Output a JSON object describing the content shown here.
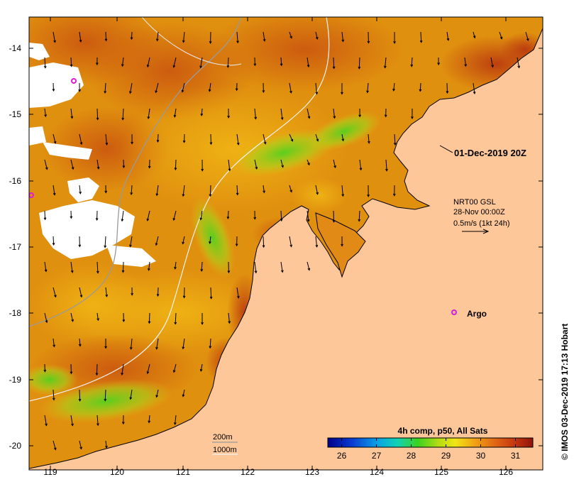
{
  "map": {
    "date_label": "01-Dec-2019 20Z",
    "current_label": {
      "line1": "NRT00 GSL",
      "line2": "28-Nov 00:00Z",
      "line3": "0.5m/s (1kt 24h)"
    },
    "argo_label": "Argo",
    "credit": "© IMOS 03-Dec-2019 17:13 Hobart",
    "contour_legend": [
      "200m",
      "1000m"
    ],
    "y_ticks": [
      "-14",
      "-15",
      "-16",
      "-17",
      "-18",
      "-19",
      "-20"
    ],
    "x_ticks": [
      "119",
      "120",
      "121",
      "122",
      "123",
      "124",
      "125",
      "126"
    ],
    "colorbar": {
      "title": "4h comp, p50, All Sats",
      "ticks": [
        "26",
        "27",
        "28",
        "29",
        "30",
        "31"
      ],
      "min": 25.6,
      "max": 31.5
    },
    "colors": {
      "land": "#fdc79a",
      "sst_high": "#a32a0e",
      "sst_mid": "#e28a16",
      "sst_low": "#6fd11a",
      "argo": "#e01ad8",
      "cloud": "#ffffff"
    }
  }
}
